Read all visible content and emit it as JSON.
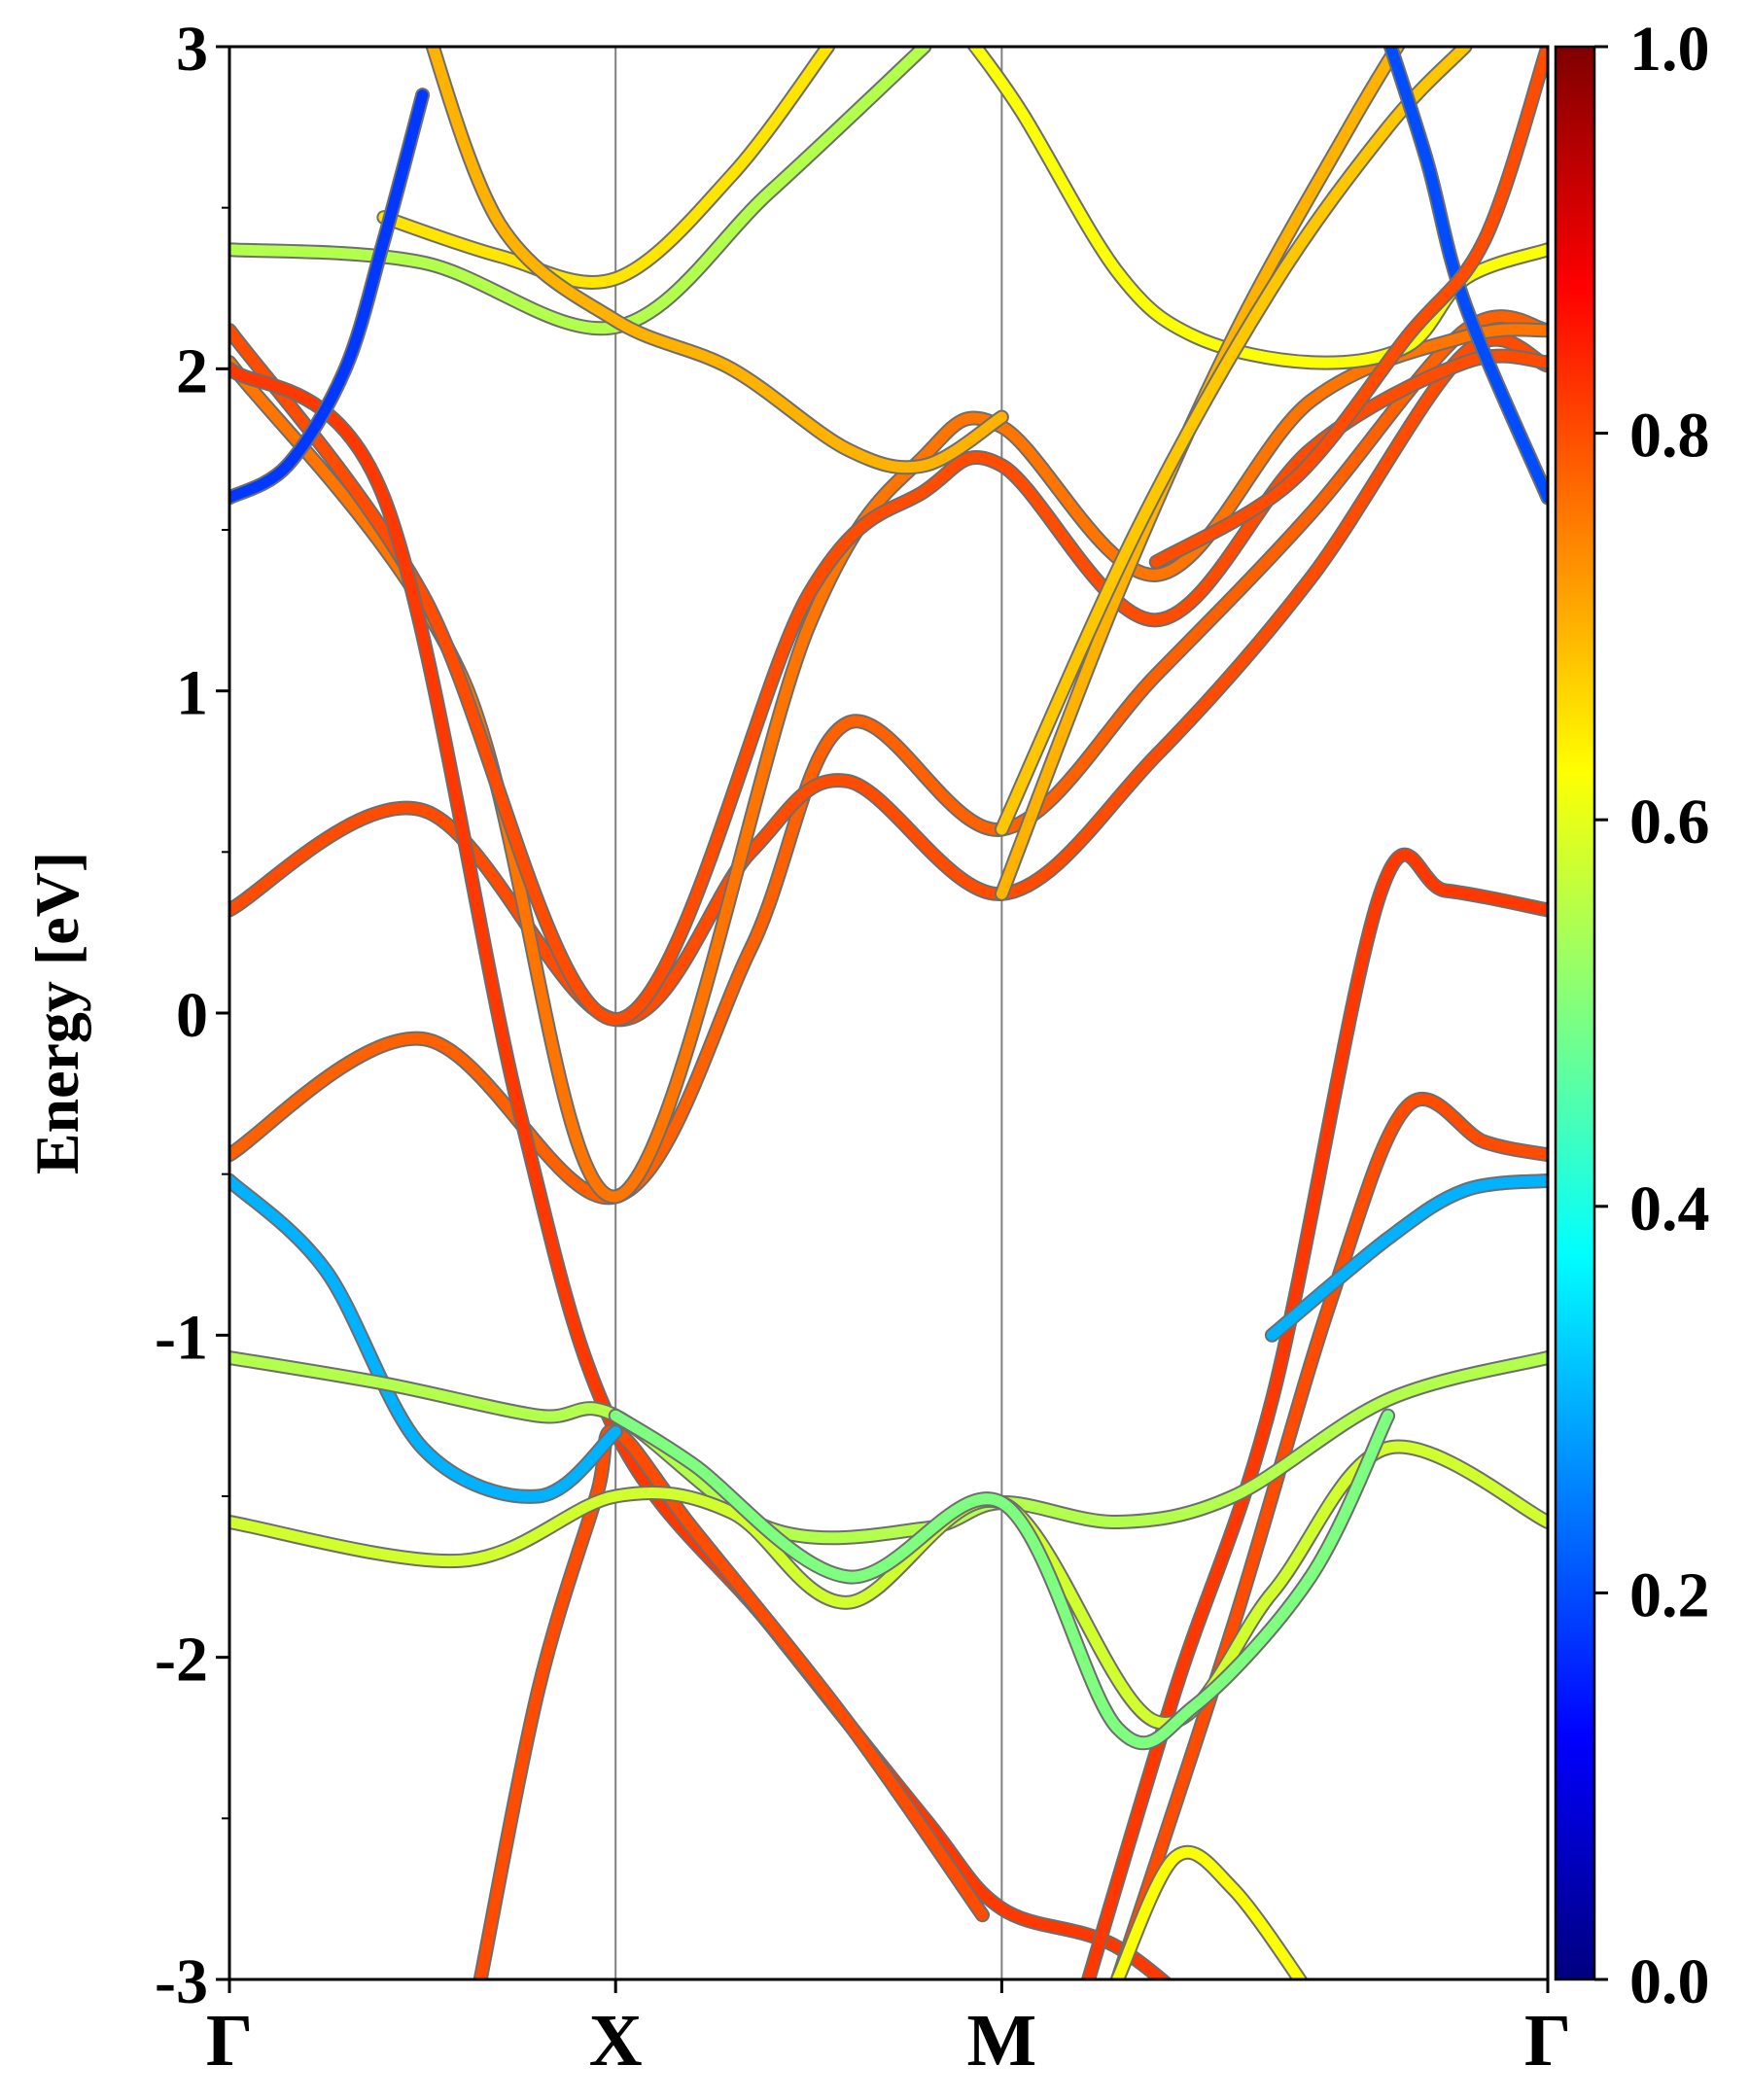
{
  "chart_data": {
    "type": "line",
    "title": "",
    "ylabel": "Energy [eV]",
    "xlabel": "",
    "x_path": [
      0,
      1,
      2,
      3.414
    ],
    "xlim": [
      0,
      3.414
    ],
    "ylim": [
      -3,
      3
    ],
    "y_ticks": [
      3,
      2,
      1,
      0,
      -1,
      -2,
      -3
    ],
    "y_tick_labels": [
      "3",
      "2",
      "1",
      "0",
      "-1",
      "-2",
      "-3"
    ],
    "x_ticks": [
      0,
      1,
      2,
      3.414
    ],
    "x_tick_labels": [
      "Γ",
      "X",
      "M",
      "Γ"
    ],
    "high_symmetry_lines": [
      1,
      2
    ],
    "grid": false,
    "colorbar": {
      "colormap": "jet",
      "range": [
        0.0,
        1.0
      ],
      "ticks": [
        1.0,
        0.8,
        0.6,
        0.4,
        0.2,
        0.0
      ],
      "tick_labels": [
        "1.0",
        "0.8",
        "0.6",
        "0.4",
        "0.2",
        "0.0"
      ],
      "stops": [
        "#00007f",
        "#0000ff",
        "#007fff",
        "#00ffff",
        "#7fff7f",
        "#ffff00",
        "#ff7f00",
        "#ff0000",
        "#7f0000"
      ]
    },
    "series": [
      {
        "weight": 0.78,
        "points": [
          [
            0,
            -0.44
          ],
          [
            0.5,
            -0.08
          ],
          [
            1,
            -0.57
          ],
          [
            1.35,
            0.2
          ],
          [
            1.6,
            0.9
          ],
          [
            2,
            0.57
          ],
          [
            2.4,
            1.05
          ],
          [
            2.8,
            1.55
          ],
          [
            3.2,
            2.12
          ],
          [
            3.414,
            2.12
          ]
        ]
      },
      {
        "weight": 0.8,
        "points": [
          [
            0,
            0.32
          ],
          [
            0.5,
            0.63
          ],
          [
            1,
            -0.02
          ],
          [
            1.35,
            0.5
          ],
          [
            1.6,
            0.72
          ],
          [
            2,
            0.37
          ],
          [
            2.4,
            0.8
          ],
          [
            2.8,
            1.35
          ],
          [
            3.2,
            2.05
          ],
          [
            3.414,
            2.01
          ]
        ]
      },
      {
        "weight": 0.76,
        "points": [
          [
            0,
            2.02
          ],
          [
            0.6,
            1.05
          ],
          [
            1,
            -0.57
          ],
          [
            1.5,
            1.2
          ],
          [
            1.8,
            1.73
          ],
          [
            2,
            1.82
          ],
          [
            2.4,
            1.36
          ],
          [
            2.8,
            1.9
          ],
          [
            3.2,
            2.1
          ],
          [
            3.414,
            2.12
          ]
        ]
      },
      {
        "weight": 0.8,
        "points": [
          [
            0,
            2.12
          ],
          [
            0.5,
            1.3
          ],
          [
            1,
            -0.02
          ],
          [
            1.5,
            1.3
          ],
          [
            1.8,
            1.62
          ],
          [
            2,
            1.7
          ],
          [
            2.4,
            1.22
          ],
          [
            2.8,
            1.75
          ],
          [
            3.2,
            2.02
          ],
          [
            3.414,
            2.02
          ]
        ]
      },
      {
        "weight": 0.82,
        "points": [
          [
            0,
            2.0
          ],
          [
            0.4,
            1.6
          ],
          [
            0.75,
            -0.3
          ],
          [
            1,
            -1.3
          ],
          [
            1.4,
            -1.9
          ],
          [
            1.8,
            -2.5
          ],
          [
            2,
            -2.78
          ],
          [
            2.3,
            -2.9
          ],
          [
            2.6,
            -3.2
          ]
        ]
      },
      {
        "weight": 0.8,
        "points": [
          [
            0.65,
            -3.0
          ],
          [
            0.8,
            -2.1
          ],
          [
            0.95,
            -1.5
          ],
          [
            1,
            -1.3
          ],
          [
            1.2,
            -1.6
          ],
          [
            1.6,
            -2.2
          ],
          [
            1.95,
            -2.8
          ]
        ]
      },
      {
        "weight": 0.82,
        "points": [
          [
            2.2,
            -3.1
          ],
          [
            2.45,
            -2.1
          ],
          [
            2.7,
            -1.2
          ],
          [
            2.98,
            0.37
          ],
          [
            3.15,
            0.38
          ],
          [
            3.414,
            0.32
          ]
        ]
      },
      {
        "weight": 0.8,
        "points": [
          [
            2.3,
            -3.0
          ],
          [
            2.6,
            -1.9
          ],
          [
            2.85,
            -0.9
          ],
          [
            3.05,
            -0.29
          ],
          [
            3.25,
            -0.4
          ],
          [
            3.414,
            -0.44
          ]
        ]
      },
      {
        "weight": 0.3,
        "points": [
          [
            0,
            -0.52
          ],
          [
            0.25,
            -0.8
          ],
          [
            0.5,
            -1.35
          ],
          [
            0.8,
            -1.5
          ],
          [
            1,
            -1.3
          ]
        ]
      },
      {
        "weight": 0.3,
        "points": [
          [
            2.7,
            -1.0
          ],
          [
            3.0,
            -0.7
          ],
          [
            3.2,
            -0.55
          ],
          [
            3.414,
            -0.52
          ]
        ]
      },
      {
        "weight": 0.55,
        "points": [
          [
            0,
            -1.07
          ],
          [
            0.4,
            -1.15
          ],
          [
            0.8,
            -1.25
          ],
          [
            1,
            -1.25
          ],
          [
            1.4,
            -1.6
          ],
          [
            1.8,
            -1.6
          ],
          [
            2,
            -1.52
          ],
          [
            2.3,
            -1.58
          ],
          [
            2.6,
            -1.5
          ],
          [
            3.0,
            -1.2
          ],
          [
            3.414,
            -1.07
          ]
        ]
      },
      {
        "weight": 0.58,
        "points": [
          [
            0,
            -1.58
          ],
          [
            0.6,
            -1.7
          ],
          [
            1,
            -1.5
          ],
          [
            1.3,
            -1.55
          ],
          [
            1.6,
            -1.83
          ],
          [
            2,
            -1.52
          ],
          [
            2.4,
            -2.2
          ],
          [
            2.7,
            -1.8
          ],
          [
            3.0,
            -1.35
          ],
          [
            3.414,
            -1.58
          ]
        ]
      },
      {
        "weight": 0.5,
        "points": [
          [
            1,
            -1.25
          ],
          [
            1.2,
            -1.4
          ],
          [
            1.6,
            -1.75
          ],
          [
            2,
            -1.52
          ],
          [
            2.3,
            -2.22
          ],
          [
            2.5,
            -2.15
          ],
          [
            2.8,
            -1.75
          ],
          [
            3.0,
            -1.25
          ]
        ]
      },
      {
        "weight": 0.62,
        "points": [
          [
            2.3,
            -3.0
          ],
          [
            2.45,
            -2.62
          ],
          [
            2.6,
            -2.72
          ],
          [
            2.8,
            -3.05
          ]
        ]
      },
      {
        "weight": 0.55,
        "points": [
          [
            0,
            2.37
          ],
          [
            0.5,
            2.33
          ],
          [
            1,
            2.13
          ],
          [
            1.4,
            2.55
          ],
          [
            1.8,
            3.0
          ]
        ]
      },
      {
        "weight": 0.65,
        "points": [
          [
            0.4,
            2.47
          ],
          [
            0.7,
            2.35
          ],
          [
            1,
            2.28
          ],
          [
            1.3,
            2.6
          ],
          [
            1.55,
            3.0
          ]
        ]
      },
      {
        "weight": 0.7,
        "points": [
          [
            0.5,
            3.1
          ],
          [
            0.7,
            2.45
          ],
          [
            1,
            2.15
          ],
          [
            1.3,
            2.0
          ],
          [
            1.6,
            1.75
          ],
          [
            1.8,
            1.7
          ],
          [
            2,
            1.85
          ]
        ]
      },
      {
        "weight": 0.62,
        "points": [
          [
            1.9,
            3.05
          ],
          [
            2.05,
            2.8
          ],
          [
            2.3,
            2.3
          ],
          [
            2.5,
            2.1
          ],
          [
            2.8,
            2.02
          ],
          [
            3.05,
            2.07
          ],
          [
            3.2,
            2.28
          ],
          [
            3.414,
            2.37
          ]
        ]
      },
      {
        "weight": 0.7,
        "points": [
          [
            2,
            0.37
          ],
          [
            2.3,
            1.3
          ],
          [
            2.6,
            2.1
          ],
          [
            2.9,
            2.75
          ],
          [
            3.05,
            3.05
          ]
        ]
      },
      {
        "weight": 0.68,
        "points": [
          [
            2,
            0.57
          ],
          [
            2.35,
            1.5
          ],
          [
            2.7,
            2.25
          ],
          [
            3.0,
            2.75
          ],
          [
            3.2,
            3.0
          ]
        ]
      },
      {
        "weight": 0.2,
        "points": [
          [
            2.98,
            3.1
          ],
          [
            3.1,
            2.65
          ],
          [
            3.2,
            2.2
          ],
          [
            3.414,
            1.6
          ]
        ]
      },
      {
        "weight": 0.18,
        "points": [
          [
            0,
            1.6
          ],
          [
            0.15,
            1.7
          ],
          [
            0.3,
            2.0
          ],
          [
            0.4,
            2.4
          ],
          [
            0.5,
            2.85
          ]
        ]
      },
      {
        "weight": 0.8,
        "points": [
          [
            2.4,
            1.4
          ],
          [
            2.75,
            1.65
          ],
          [
            3.05,
            2.1
          ],
          [
            3.25,
            2.4
          ],
          [
            3.414,
            3.0
          ]
        ]
      }
    ]
  }
}
